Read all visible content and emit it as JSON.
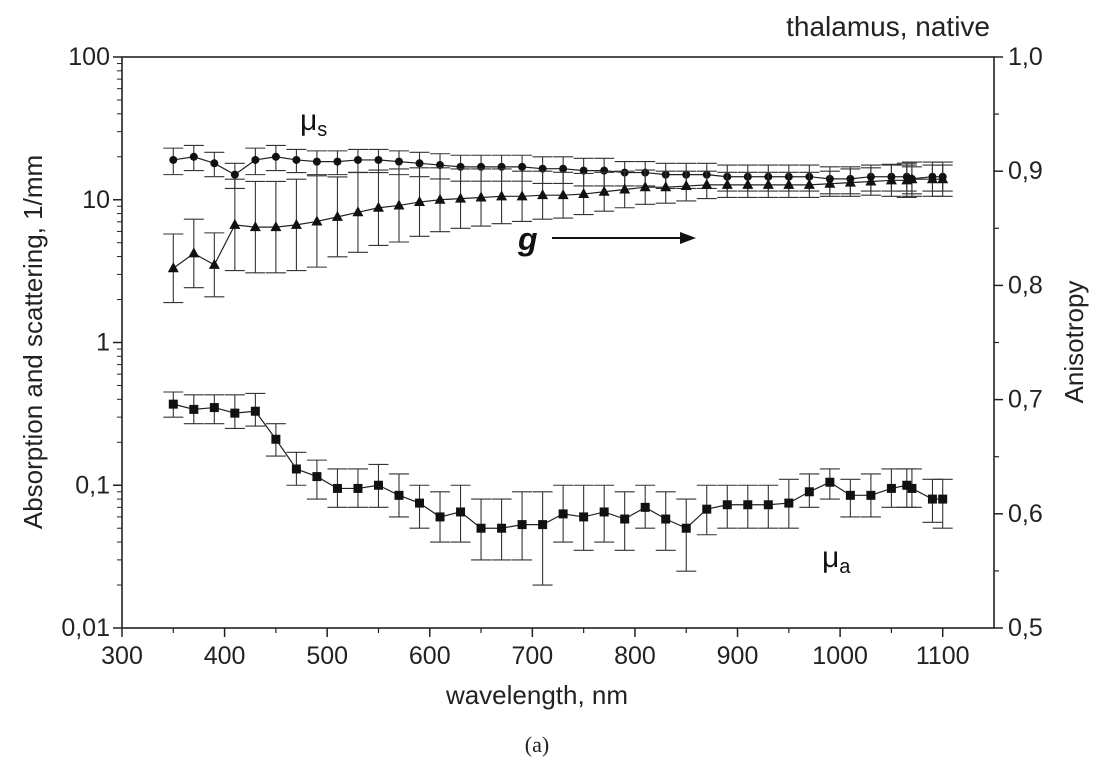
{
  "chart_data": {
    "type": "scatter",
    "title": "thalamus, native",
    "caption": "(a)",
    "xlabel": "wavelength, nm",
    "ylabel_left": "Absorption and scattering, 1/mm",
    "ylabel_right": "Anisotropy",
    "xlim": [
      300,
      1150
    ],
    "xticks": [
      300,
      400,
      500,
      600,
      700,
      800,
      900,
      1000,
      1100
    ],
    "xtick_labels": [
      "300",
      "400",
      "500",
      "600",
      "700",
      "800",
      "900",
      "1000",
      "1100"
    ],
    "ylim_left": [
      0.01,
      100
    ],
    "yscale_left": "log",
    "yticks_left": [
      0.01,
      0.1,
      1,
      10,
      100
    ],
    "ytick_labels_left": [
      "0,01",
      "0,1",
      "1",
      "10",
      "100"
    ],
    "ylim_right": [
      0.5,
      1.0
    ],
    "yticks_right": [
      0.5,
      0.6,
      0.7,
      0.8,
      0.9,
      1.0
    ],
    "ytick_labels_right": [
      "0,5",
      "0,6",
      "0,7",
      "0,8",
      "0,9",
      "1,0"
    ],
    "grid": false,
    "annotations": {
      "mu_s_main": "μ",
      "mu_s_sub": "s",
      "mu_a_main": "μ",
      "mu_a_sub": "a",
      "g": "g"
    },
    "series": [
      {
        "axis": "left",
        "marker": "circle",
        "x": [
          350,
          370,
          390,
          410,
          430,
          450,
          470,
          490,
          510,
          530,
          550,
          570,
          590,
          610,
          630,
          650,
          670,
          690,
          710,
          730,
          750,
          770,
          790,
          810,
          830,
          850,
          870,
          890,
          910,
          930,
          950,
          970,
          990,
          1010,
          1030,
          1050,
          1065,
          1070,
          1090,
          1100
        ],
        "y": [
          19,
          20,
          18,
          15,
          19,
          20,
          19,
          18.5,
          18.5,
          19,
          19,
          18.5,
          18,
          17.5,
          17,
          17,
          17,
          17,
          16.5,
          16.5,
          16,
          16,
          15.5,
          15.5,
          15,
          15,
          15,
          14.5,
          14.5,
          14.5,
          14.5,
          14.5,
          14,
          14,
          14.5,
          14.5,
          14.5,
          14,
          14.5,
          14.5
        ],
        "err": [
          4,
          4,
          3.5,
          3,
          4,
          4,
          3.5,
          3.5,
          3.5,
          3.5,
          3.5,
          3.5,
          3.5,
          3.5,
          3.5,
          3.5,
          3.5,
          3.5,
          3.5,
          3.5,
          3.5,
          3.5,
          3,
          3,
          3,
          3,
          3,
          3,
          3,
          3,
          3,
          3,
          3,
          3,
          3,
          3,
          3,
          3,
          3,
          3
        ]
      },
      {
        "axis": "left",
        "marker": "square",
        "x": [
          350,
          370,
          390,
          410,
          430,
          450,
          470,
          490,
          510,
          530,
          550,
          570,
          590,
          610,
          630,
          650,
          670,
          690,
          710,
          730,
          750,
          770,
          790,
          810,
          830,
          850,
          870,
          890,
          910,
          930,
          950,
          970,
          990,
          1010,
          1030,
          1050,
          1065,
          1070,
          1090,
          1100
        ],
        "y": [
          0.37,
          0.34,
          0.35,
          0.32,
          0.33,
          0.21,
          0.13,
          0.115,
          0.095,
          0.095,
          0.1,
          0.085,
          0.075,
          0.06,
          0.065,
          0.05,
          0.05,
          0.053,
          0.053,
          0.063,
          0.06,
          0.065,
          0.058,
          0.07,
          0.058,
          0.05,
          0.068,
          0.073,
          0.073,
          0.073,
          0.075,
          0.09,
          0.105,
          0.085,
          0.085,
          0.095,
          0.1,
          0.095,
          0.08,
          0.08
        ],
        "err_up": [
          0.45,
          0.43,
          0.43,
          0.43,
          0.44,
          0.27,
          0.17,
          0.15,
          0.13,
          0.13,
          0.14,
          0.12,
          0.1,
          0.09,
          0.1,
          0.08,
          0.08,
          0.09,
          0.09,
          0.1,
          0.1,
          0.1,
          0.09,
          0.1,
          0.09,
          0.08,
          0.1,
          0.1,
          0.1,
          0.1,
          0.11,
          0.12,
          0.13,
          0.11,
          0.12,
          0.13,
          0.13,
          0.13,
          0.11,
          0.11
        ],
        "err_down": [
          0.3,
          0.27,
          0.27,
          0.25,
          0.26,
          0.16,
          0.1,
          0.08,
          0.07,
          0.07,
          0.07,
          0.06,
          0.05,
          0.04,
          0.04,
          0.03,
          0.03,
          0.03,
          0.02,
          0.04,
          0.035,
          0.04,
          0.035,
          0.05,
          0.035,
          0.025,
          0.045,
          0.05,
          0.05,
          0.05,
          0.05,
          0.07,
          0.08,
          0.06,
          0.06,
          0.07,
          0.07,
          0.07,
          0.055,
          0.05
        ]
      },
      {
        "axis": "right",
        "marker": "triangle",
        "x": [
          350,
          370,
          390,
          410,
          430,
          450,
          470,
          490,
          510,
          530,
          550,
          570,
          590,
          610,
          630,
          650,
          670,
          690,
          710,
          730,
          750,
          770,
          790,
          810,
          830,
          850,
          870,
          890,
          910,
          930,
          950,
          970,
          990,
          1010,
          1030,
          1050,
          1065,
          1070,
          1090,
          1100
        ],
        "y": [
          0.815,
          0.828,
          0.818,
          0.853,
          0.851,
          0.851,
          0.853,
          0.856,
          0.86,
          0.864,
          0.868,
          0.87,
          0.873,
          0.875,
          0.876,
          0.877,
          0.878,
          0.878,
          0.879,
          0.879,
          0.88,
          0.882,
          0.884,
          0.886,
          0.886,
          0.887,
          0.888,
          0.888,
          0.888,
          0.888,
          0.888,
          0.888,
          0.889,
          0.89,
          0.891,
          0.892,
          0.892,
          0.893,
          0.893,
          0.893
        ],
        "err": [
          0.03,
          0.03,
          0.028,
          0.04,
          0.04,
          0.04,
          0.04,
          0.04,
          0.035,
          0.035,
          0.033,
          0.032,
          0.03,
          0.028,
          0.026,
          0.025,
          0.024,
          0.022,
          0.021,
          0.02,
          0.018,
          0.017,
          0.016,
          0.015,
          0.014,
          0.013,
          0.012,
          0.011,
          0.011,
          0.011,
          0.011,
          0.011,
          0.011,
          0.012,
          0.012,
          0.014,
          0.015,
          0.015,
          0.015,
          0.015
        ]
      }
    ]
  }
}
